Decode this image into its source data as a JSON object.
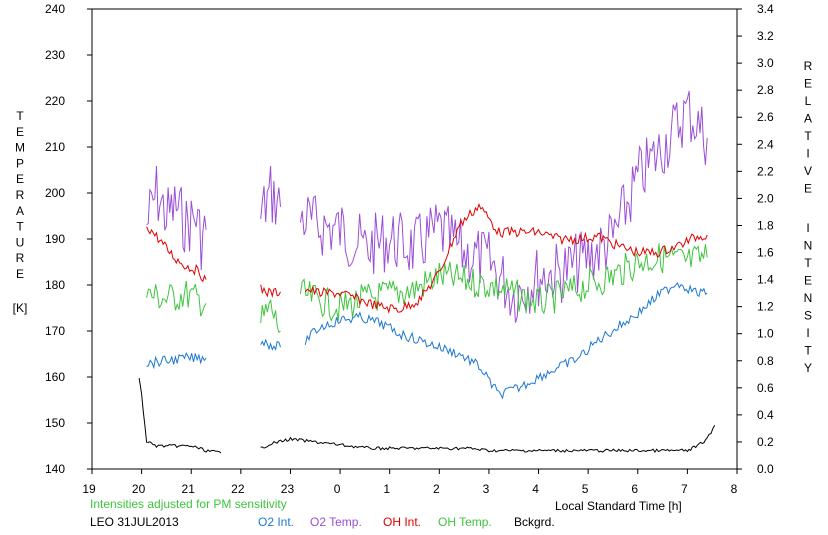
{
  "chart_data": {
    "type": "line",
    "title": "",
    "xlabel": "Local Standard Time [h]",
    "ylabel_left": "TEMPERATURE",
    "ylabel_left_unit": "[K]",
    "ylabel_right": "RELATIVE INTENSITY",
    "note": "Intensities adjusted for PM sensitivity",
    "station_date": "LEO 31JUL2013",
    "x_ticks": [
      "19",
      "20",
      "21",
      "22",
      "23",
      "0",
      "1",
      "2",
      "3",
      "4",
      "5",
      "6",
      "7",
      "8"
    ],
    "xlim": [
      19,
      32
    ],
    "ylim_left": [
      140,
      240
    ],
    "ylim_right": [
      0.0,
      3.4
    ],
    "y_left_ticks": [
      "240",
      "230",
      "220",
      "210",
      "200",
      "190",
      "180",
      "170",
      "160",
      "150",
      "140"
    ],
    "y_right_ticks": [
      "3.4",
      "3.2",
      "3.0",
      "2.8",
      "2.6",
      "2.4",
      "2.2",
      "2.0",
      "1.8",
      "1.6",
      "1.4",
      "1.2",
      "1.0",
      "0.8",
      "0.6",
      "0.4",
      "0.2",
      "0.0"
    ],
    "grid": false,
    "legend": [
      {
        "label": "O2 Int.",
        "color": "#1e78d2"
      },
      {
        "label": "O2 Temp.",
        "color": "#9b4fd6"
      },
      {
        "label": "OH Int.",
        "color": "#e00000"
      },
      {
        "label": "OH Temp.",
        "color": "#3ec43e"
      },
      {
        "label": "Bckgrd.",
        "color": "#000000"
      }
    ],
    "series": [
      {
        "name": "O2 Temp.",
        "axis": "left",
        "color": "#9b4fd6",
        "segments": [
          {
            "x": [
              20.1,
              20.3,
              20.5,
              20.7,
              20.9,
              21.1,
              21.2,
              21.3
            ],
            "y": [
              193,
              200,
              195,
              197,
              193,
              195,
              190,
              192
            ]
          },
          {
            "x": [
              22.4,
              22.6,
              22.8
            ],
            "y": [
              195,
              200,
              197
            ]
          },
          {
            "x": [
              23.2,
              23.5,
              24.0,
              24.5,
              25.0,
              25.5,
              26.0,
              26.5,
              27.0,
              27.5,
              28.0,
              28.5,
              29.0,
              29.5,
              30.0,
              30.5,
              31.0,
              31.4
            ],
            "y": [
              195,
              193,
              192,
              188,
              190,
              188,
              192,
              187,
              185,
              178,
              182,
              183,
              186,
              190,
              203,
              210,
              218,
              212
            ]
          }
        ]
      },
      {
        "name": "OH Temp.",
        "axis": "left",
        "color": "#3ec43e",
        "segments": [
          {
            "x": [
              20.1,
              20.5,
              20.9,
              21.3
            ],
            "y": [
              178,
              177,
              178,
              176
            ]
          },
          {
            "x": [
              22.4,
              22.6,
              22.8
            ],
            "y": [
              172,
              175,
              170
            ]
          },
          {
            "x": [
              23.2,
              23.5,
              24.0,
              24.5,
              25.0,
              25.5,
              26.0,
              26.5,
              27.0,
              27.5,
              28.0,
              28.5,
              29.0,
              29.5,
              30.0,
              30.5,
              31.0,
              31.4
            ],
            "y": [
              178,
              177,
              175,
              177,
              178,
              179,
              182,
              181,
              180,
              178,
              176,
              178,
              180,
              182,
              185,
              186,
              185,
              186
            ]
          }
        ]
      },
      {
        "name": "OH Int.",
        "axis": "right",
        "color": "#e00000",
        "segments": [
          {
            "x": [
              20.1,
              20.3,
              20.5,
              20.7,
              20.9,
              21.1,
              21.3
            ],
            "y": [
              1.8,
              1.72,
              1.63,
              1.55,
              1.5,
              1.47,
              1.4
            ]
          },
          {
            "x": [
              22.4,
              22.6,
              22.8
            ],
            "y": [
              1.33,
              1.3,
              1.31
            ]
          },
          {
            "x": [
              23.3,
              23.6,
              24.0,
              24.4,
              24.8,
              25.2,
              25.6,
              26.0,
              26.4,
              26.8,
              27.2,
              27.6,
              28.0,
              28.4,
              28.8,
              29.2,
              29.6,
              30.0,
              30.4,
              30.8,
              31.2,
              31.4
            ],
            "y": [
              1.33,
              1.3,
              1.3,
              1.25,
              1.2,
              1.18,
              1.25,
              1.45,
              1.8,
              1.95,
              1.75,
              1.75,
              1.75,
              1.7,
              1.7,
              1.72,
              1.65,
              1.6,
              1.6,
              1.65,
              1.72,
              1.73
            ]
          }
        ]
      },
      {
        "name": "O2 Int.",
        "axis": "right",
        "color": "#1e78d2",
        "segments": [
          {
            "x": [
              20.1,
              20.5,
              20.9,
              21.3
            ],
            "y": [
              0.78,
              0.8,
              0.82,
              0.82
            ]
          },
          {
            "x": [
              22.4,
              22.6,
              22.8
            ],
            "y": [
              0.95,
              0.92,
              0.9
            ]
          },
          {
            "x": [
              23.3,
              23.6,
              24.0,
              24.4,
              24.8,
              25.2,
              25.6,
              26.0,
              26.4,
              26.8,
              27.2,
              27.6,
              28.0,
              28.4,
              28.8,
              29.2,
              29.6,
              30.0,
              30.4,
              30.8,
              31.2,
              31.4
            ],
            "y": [
              0.95,
              1.05,
              1.1,
              1.12,
              1.08,
              1.0,
              0.95,
              0.9,
              0.85,
              0.76,
              0.55,
              0.6,
              0.68,
              0.75,
              0.82,
              0.95,
              1.05,
              1.15,
              1.28,
              1.38,
              1.3,
              1.3
            ]
          }
        ]
      },
      {
        "name": "Bckgrd.",
        "axis": "left",
        "color": "#000000",
        "segments": [
          {
            "x": [
              19.95,
              20.0,
              20.1,
              20.3,
              20.6,
              21.0,
              21.3,
              21.6
            ],
            "y": [
              160,
              156,
              146,
              145,
              145,
              145,
              144,
              143.5
            ]
          },
          {
            "x": [
              22.4,
              22.6,
              22.8,
              23.0,
              23.4,
              23.8,
              24.2,
              24.6,
              25.0,
              25.4,
              25.8,
              26.2,
              26.6,
              27.0,
              27.4,
              27.8,
              28.2,
              28.6,
              29.0,
              29.4,
              29.8,
              30.2,
              30.6,
              31.0,
              31.2,
              31.4,
              31.55
            ],
            "y": [
              144.5,
              145.5,
              146,
              146.5,
              146,
              145.5,
              145,
              144.5,
              144.5,
              144.5,
              144.5,
              144.5,
              144.5,
              144,
              144,
              144,
              144,
              144,
              144,
              144,
              144,
              144,
              144,
              144,
              145,
              146.5,
              149.5
            ]
          }
        ]
      }
    ]
  }
}
